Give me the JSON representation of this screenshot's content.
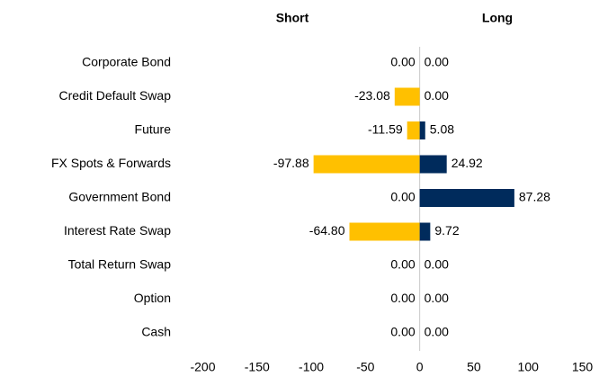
{
  "chart_data": {
    "type": "diverging-bar",
    "categories": [
      "Corporate Bond",
      "Credit Default Swap",
      "Future",
      "FX Spots & Forwards",
      "Government Bond",
      "Interest Rate Swap",
      "Total Return Swap",
      "Option",
      "Cash"
    ],
    "series": [
      {
        "name": "Short",
        "color": "#ffc000",
        "values": [
          0,
          -23.08,
          -11.59,
          -97.88,
          0,
          -64.8,
          0,
          0,
          0
        ],
        "value_labels": [
          "0.00",
          "-23.08",
          "-11.59",
          "-97.88",
          "0.00",
          "-64.80",
          "0.00",
          "0.00",
          "0.00"
        ]
      },
      {
        "name": "Long",
        "color": "#002b5c",
        "values": [
          0,
          0,
          5.08,
          24.92,
          87.28,
          9.72,
          0,
          0,
          0
        ],
        "value_labels": [
          "0.00",
          "0.00",
          "5.08",
          "24.92",
          "87.28",
          "9.72",
          "0.00",
          "0.00",
          "0.00"
        ]
      }
    ],
    "xlim": [
      -200,
      150
    ],
    "xticks": [
      -200,
      -150,
      -100,
      -50,
      0,
      50,
      100,
      150
    ],
    "grid": false
  }
}
